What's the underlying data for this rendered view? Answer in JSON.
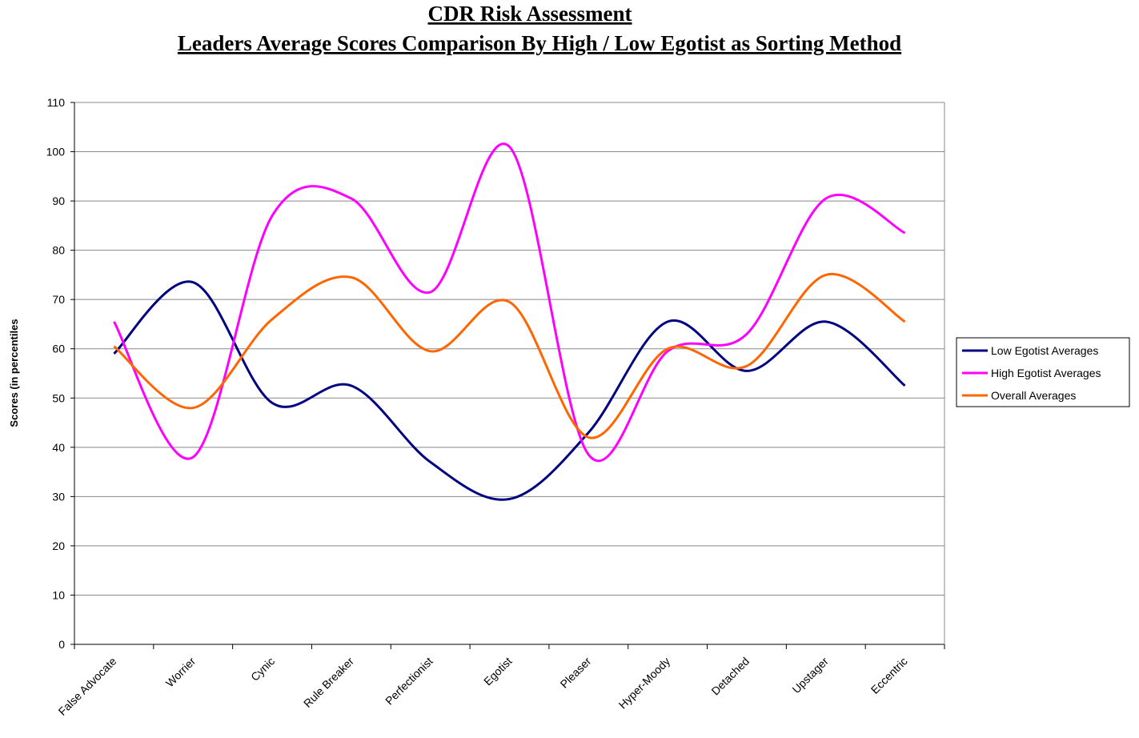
{
  "chart_data": {
    "type": "line",
    "title": "CDR Risk Assessment",
    "subtitle": "Leaders Average Scores Comparison By High / Low Egotist as Sorting Method",
    "y_label": "Scores (in percentiles",
    "categories": [
      "False Advocate",
      "Worrier",
      "Cynic",
      "Rule Breaker",
      "Perfectionist",
      "Egotist",
      "Pleaser",
      "Hyper-Moody",
      "Detached",
      "Upstager",
      "Eccentric"
    ],
    "series": [
      {
        "name": "Low Egotist Averages",
        "color": "#000080",
        "values": [
          59,
          73.5,
          49,
          52.5,
          37,
          29.5,
          43,
          65.5,
          55.5,
          65.5,
          52.5
        ]
      },
      {
        "name": "High Egotist Averages",
        "color": "#ff00ff",
        "values": [
          65.5,
          38,
          87,
          90.5,
          71.5,
          101,
          38.5,
          59.5,
          63,
          90.5,
          83.5
        ]
      },
      {
        "name": "Overall Averages",
        "color": "#ff6600",
        "values": [
          60.5,
          48,
          66,
          74.5,
          59.5,
          69.5,
          42,
          60,
          56.5,
          75,
          65.5
        ]
      }
    ],
    "ylim": [
      0,
      110
    ],
    "yticks": [
      0,
      10,
      20,
      30,
      40,
      50,
      60,
      70,
      80,
      90,
      100,
      110
    ],
    "grid": true,
    "smooth": true,
    "legend": "right"
  }
}
